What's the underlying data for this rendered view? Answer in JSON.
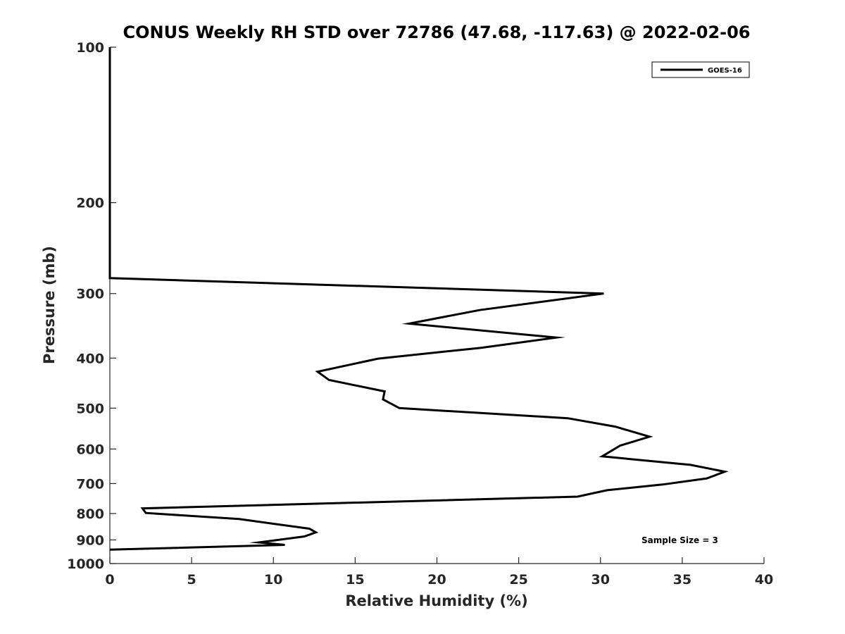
{
  "chart_data": {
    "type": "line",
    "title": "CONUS Weekly RH STD over 72786 (47.68, -117.63) @ 2022-02-06",
    "xlabel": "Relative Humidity (%)",
    "ylabel": "Pressure (mb)",
    "xlim": [
      0,
      40
    ],
    "ylim": [
      100,
      1000
    ],
    "y_scale": "log",
    "y_reversed": false,
    "x_ticks": [
      0,
      5,
      10,
      15,
      20,
      25,
      30,
      35,
      40
    ],
    "y_ticks": [
      100,
      200,
      300,
      400,
      500,
      600,
      700,
      800,
      900,
      1000
    ],
    "grid": false,
    "legend_position": "top-right",
    "series": [
      {
        "name": "GOES-16",
        "color": "#000000",
        "x": [
          0,
          0,
          0,
          0,
          30.2,
          22.6,
          18.3,
          27.3,
          22.7,
          16.4,
          12.7,
          13.4,
          16.8,
          16.7,
          17.7,
          28.0,
          30.9,
          33.0,
          31.2,
          30.1,
          35.5,
          37.6,
          36.5,
          33.8,
          30.4,
          28.6,
          2.0,
          2.2,
          7.9,
          12.2,
          12.6,
          11.9,
          9.1,
          10.7,
          0
        ],
        "y": [
          100,
          200,
          270,
          280,
          300,
          323,
          343,
          365,
          382,
          401,
          425,
          441,
          464,
          481,
          500,
          523,
          543,
          568,
          591,
          620,
          644,
          664,
          684,
          703,
          721,
          742,
          782,
          798,
          820,
          856,
          870,
          886,
          910,
          920,
          940
        ]
      }
    ],
    "annotations": [
      {
        "text": "Sample Size = 3"
      }
    ]
  }
}
